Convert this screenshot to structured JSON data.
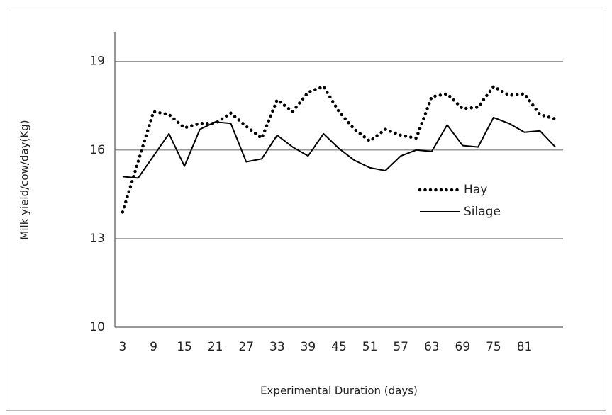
{
  "chart_data": {
    "type": "line",
    "xlabel": "Experimental Duration (days)",
    "ylabel": "Milk yield/cow/day(Kg)",
    "categories": [
      "3",
      null,
      "9",
      null,
      "15",
      null,
      "21",
      null,
      "27",
      null,
      "33",
      null,
      "39",
      null,
      "45",
      null,
      "51",
      null,
      "57",
      null,
      "63",
      null,
      "69",
      null,
      "75",
      null,
      "81",
      null,
      null
    ],
    "series": [
      {
        "name": "Hay",
        "color": "#000000",
        "style": "dotted",
        "values": [
          13.9,
          15.6,
          17.3,
          17.2,
          16.75,
          16.9,
          16.9,
          17.25,
          16.8,
          16.4,
          17.7,
          17.3,
          17.95,
          18.15,
          17.3,
          16.7,
          16.3,
          16.7,
          16.5,
          16.4,
          17.8,
          17.9,
          17.4,
          17.45,
          18.15,
          17.85,
          17.9,
          17.2,
          17.05
        ]
      },
      {
        "name": "Silage",
        "color": "#000000",
        "style": "solid",
        "values": [
          15.1,
          15.05,
          15.8,
          16.55,
          15.45,
          16.7,
          16.95,
          16.9,
          15.6,
          15.7,
          16.5,
          16.1,
          15.8,
          16.55,
          16.05,
          15.65,
          15.4,
          15.3,
          15.8,
          16.0,
          15.95,
          16.85,
          16.15,
          16.1,
          17.1,
          16.9,
          16.6,
          16.65,
          16.1
        ]
      }
    ],
    "ylim": [
      10,
      20
    ],
    "yticks": [
      10,
      13,
      16,
      19
    ],
    "grid": true
  }
}
